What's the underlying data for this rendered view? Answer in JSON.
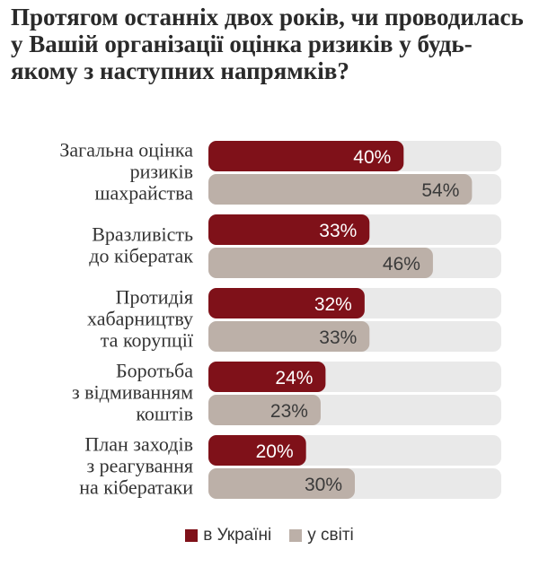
{
  "colors": {
    "ukraine": "#7f1119",
    "world": "#bcb0a8",
    "track": "#e9e9e9"
  },
  "chart_data": {
    "type": "bar",
    "orientation": "horizontal",
    "title": "Протягом останніх двох років, чи проводилась у Вашій організації оцінка ризиків у будь-якому з наступних напрямків?",
    "categories": [
      [
        "Загальна оцінка",
        "ризиків",
        "шахрайства"
      ],
      [
        "Вразливість",
        "до кібератак"
      ],
      [
        "Протидія",
        "хабарництву",
        "та корупції"
      ],
      [
        "Боротьба",
        "з відмиванням",
        "коштів"
      ],
      [
        "План заходів",
        "з реагування",
        "на кібератаки"
      ]
    ],
    "series": [
      {
        "name": "в Україні",
        "values": [
          40,
          33,
          32,
          24,
          20
        ]
      },
      {
        "name": "у світі",
        "values": [
          54,
          46,
          33,
          23,
          30
        ]
      }
    ],
    "value_suffix": "%",
    "xlim": [
      0,
      60
    ],
    "legend": "bottom-center",
    "grid": false
  }
}
